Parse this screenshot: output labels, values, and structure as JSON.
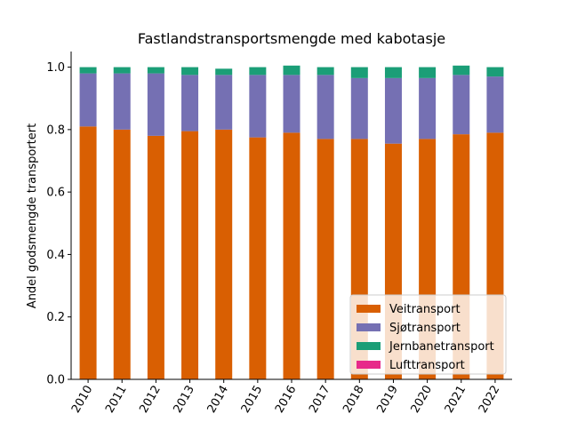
{
  "chart_data": {
    "type": "bar",
    "stacked": true,
    "title": "Fastlandstransportsmengde med kabotasje",
    "xlabel": "",
    "ylabel": "Andel godsmengde transportert",
    "ylim": [
      0,
      1.05
    ],
    "yticks": [
      "0.0",
      "0.2",
      "0.4",
      "0.6",
      "0.8",
      "1.0"
    ],
    "categories": [
      "2010",
      "2011",
      "2012",
      "2013",
      "2014",
      "2015",
      "2016",
      "2017",
      "2018",
      "2019",
      "2020",
      "2021",
      "2022"
    ],
    "legend_position": "bottom-right",
    "grid": false,
    "series": [
      {
        "name": "Veitransport",
        "color": "#d95f02",
        "values": [
          0.81,
          0.8,
          0.78,
          0.795,
          0.8,
          0.775,
          0.79,
          0.77,
          0.77,
          0.755,
          0.77,
          0.785,
          0.79
        ]
      },
      {
        "name": "Sjøtransport",
        "color": "#7570b3",
        "values": [
          0.17,
          0.18,
          0.2,
          0.18,
          0.175,
          0.2,
          0.185,
          0.205,
          0.195,
          0.21,
          0.195,
          0.19,
          0.18
        ]
      },
      {
        "name": "Jernbanetransport",
        "color": "#1b9e77",
        "values": [
          0.02,
          0.02,
          0.02,
          0.025,
          0.02,
          0.025,
          0.03,
          0.025,
          0.035,
          0.035,
          0.035,
          0.03,
          0.03
        ]
      },
      {
        "name": "Lufttransport",
        "color": "#e7298a",
        "values": [
          0.0,
          0.0,
          0.0,
          0.0,
          0.0,
          0.0,
          0.0,
          0.0,
          0.0,
          0.0,
          0.0,
          0.0,
          0.0
        ]
      }
    ]
  }
}
